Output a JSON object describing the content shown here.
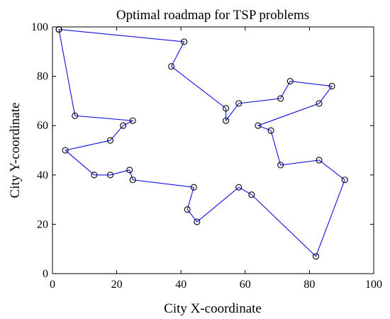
{
  "chart_data": {
    "type": "line",
    "title": "Optimal roadmap for TSP problems",
    "xlabel": "City X-coordinate",
    "ylabel": "City Y-coordinate",
    "xlim": [
      0,
      100
    ],
    "ylim": [
      0,
      100
    ],
    "xticks": [
      "0",
      "20",
      "40",
      "60",
      "80",
      "100"
    ],
    "yticks": [
      "0",
      "20",
      "40",
      "60",
      "80",
      "100"
    ],
    "grid": false,
    "line_color": "#1010e0",
    "marker": "circle",
    "series": [
      {
        "x": [
          2,
          41,
          37,
          54,
          54,
          58,
          71,
          74,
          87,
          83,
          64,
          68,
          71,
          83,
          91,
          82,
          62,
          58,
          45,
          42,
          44,
          25,
          24,
          18,
          13,
          4,
          18,
          22,
          25,
          7,
          2
        ],
        "y": [
          99,
          94,
          84,
          67,
          62,
          69,
          71,
          78,
          76,
          69,
          60,
          58,
          44,
          46,
          38,
          7,
          32,
          35,
          21,
          26,
          35,
          38,
          42,
          40,
          40,
          50,
          54,
          60,
          62,
          64,
          99
        ]
      }
    ]
  }
}
